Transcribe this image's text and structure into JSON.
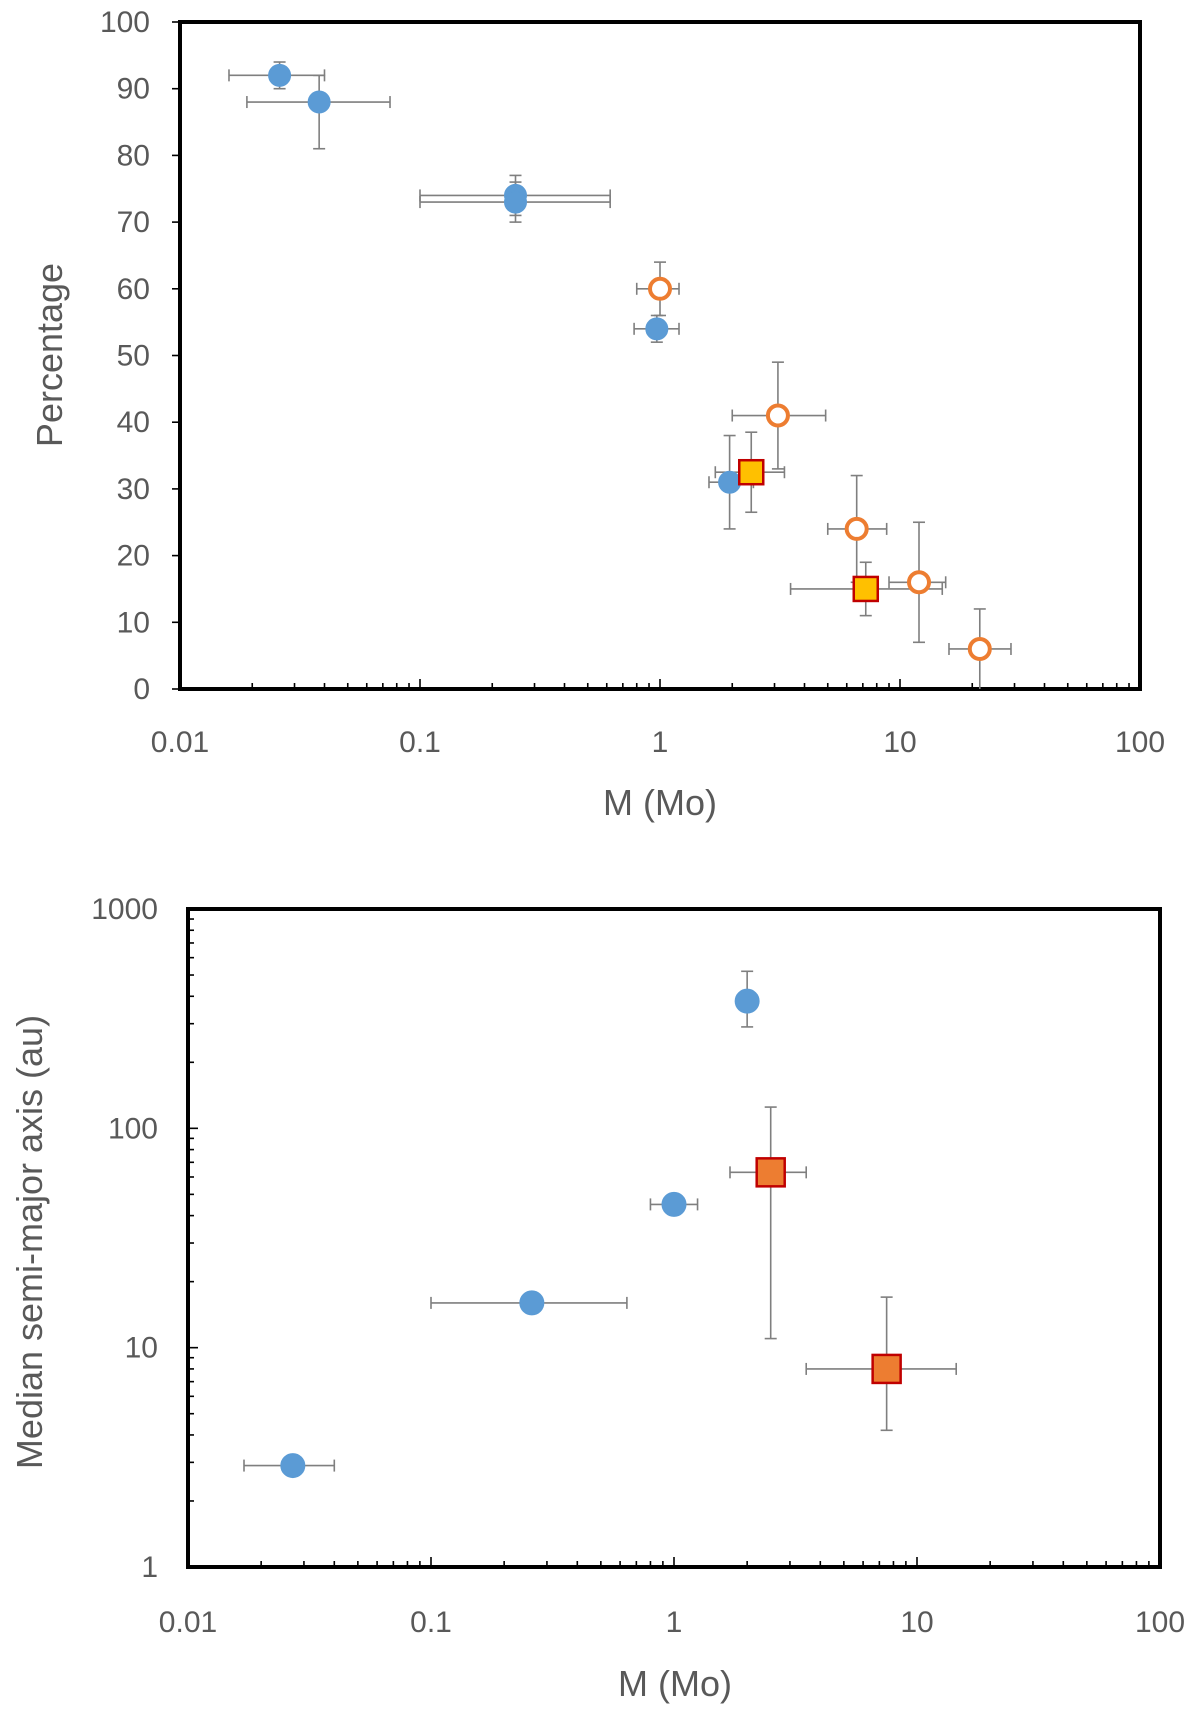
{
  "chart_data": [
    {
      "type": "scatter",
      "xlabel": "M (Mo)",
      "ylabel": "Percentage",
      "xscale": "log",
      "yscale": "linear",
      "xlim": [
        0.01,
        100
      ],
      "ylim": [
        0,
        100
      ],
      "x_tick_labels": [
        "0.01",
        "0.1",
        "1",
        "10",
        "100"
      ],
      "y_tick_labels": [
        "0",
        "10",
        "20",
        "30",
        "40",
        "50",
        "60",
        "70",
        "80",
        "90",
        "100"
      ],
      "grid": false,
      "legend": "none",
      "series": [
        {
          "marker": "circle-filled",
          "color": "#5b9bd5",
          "points": [
            {
              "x": 0.026,
              "y": 92,
              "xerr": [
                0.016,
                0.04
              ],
              "yerr": [
                90,
                94
              ]
            },
            {
              "x": 0.038,
              "y": 88,
              "xerr": [
                0.019,
                0.075
              ],
              "yerr": [
                81,
                92
              ]
            },
            {
              "x": 0.25,
              "y": 74,
              "xerr": [
                0.1,
                0.62
              ],
              "yerr": [
                71,
                77
              ]
            },
            {
              "x": 0.25,
              "y": 73,
              "xerr": [
                0.1,
                0.62
              ],
              "yerr": [
                70,
                76
              ]
            },
            {
              "x": 0.97,
              "y": 54,
              "xerr": [
                0.78,
                1.2
              ],
              "yerr": [
                52,
                56
              ]
            },
            {
              "x": 1.95,
              "y": 31,
              "xerr": [
                1.6,
                2.45
              ],
              "yerr": [
                24,
                38
              ]
            }
          ]
        },
        {
          "marker": "circle-open",
          "color": "#ed7d31",
          "points": [
            {
              "x": 1.0,
              "y": 60,
              "xerr": [
                0.8,
                1.2
              ],
              "yerr": [
                56,
                64
              ]
            },
            {
              "x": 3.1,
              "y": 41,
              "xerr": [
                2.0,
                4.9
              ],
              "yerr": [
                33,
                49
              ]
            },
            {
              "x": 6.6,
              "y": 24,
              "xerr": [
                5.0,
                8.8
              ],
              "yerr": [
                16,
                32
              ]
            },
            {
              "x": 12.0,
              "y": 16,
              "xerr": [
                9.0,
                15.5
              ],
              "yerr": [
                7,
                25
              ]
            },
            {
              "x": 21.5,
              "y": 6,
              "xerr": [
                16.0,
                29.0
              ],
              "yerr": [
                0,
                12
              ]
            }
          ]
        },
        {
          "marker": "square-filled",
          "color": "#ffc000",
          "edge_color": "#c00000",
          "points": [
            {
              "x": 2.4,
              "y": 32.5,
              "xerr": [
                1.7,
                3.3
              ],
              "yerr": [
                26.5,
                38.5
              ]
            },
            {
              "x": 7.2,
              "y": 15,
              "xerr": [
                3.5,
                15.0
              ],
              "yerr": [
                11,
                19
              ]
            }
          ]
        }
      ]
    },
    {
      "type": "scatter",
      "xlabel": "M (Mo)",
      "ylabel": "Median semi-major axis (au)",
      "xscale": "log",
      "yscale": "log",
      "xlim": [
        0.01,
        100
      ],
      "ylim": [
        1,
        1000
      ],
      "x_tick_labels": [
        "0.01",
        "0.1",
        "1",
        "10",
        "100"
      ],
      "y_tick_labels": [
        "1",
        "10",
        "100",
        "1000"
      ],
      "grid": false,
      "legend": "none",
      "series": [
        {
          "marker": "circle-filled",
          "color": "#5b9bd5",
          "points": [
            {
              "x": 0.027,
              "y": 2.9,
              "xerr": [
                0.017,
                0.04
              ],
              "yerr": null
            },
            {
              "x": 0.26,
              "y": 16,
              "xerr": [
                0.1,
                0.64
              ],
              "yerr": null
            },
            {
              "x": 1.0,
              "y": 45,
              "xerr": [
                0.8,
                1.25
              ],
              "yerr": null
            },
            {
              "x": 2.0,
              "y": 380,
              "xerr": null,
              "yerr": [
                290,
                520
              ]
            }
          ]
        },
        {
          "marker": "square-filled",
          "color": "#ed7d31",
          "edge_color": "#c00000",
          "points": [
            {
              "x": 2.5,
              "y": 63,
              "xerr": [
                1.7,
                3.5
              ],
              "yerr": [
                11,
                125
              ]
            },
            {
              "x": 7.5,
              "y": 8,
              "xerr": [
                3.5,
                14.5
              ],
              "yerr": [
                4.2,
                17
              ]
            }
          ]
        }
      ]
    }
  ]
}
